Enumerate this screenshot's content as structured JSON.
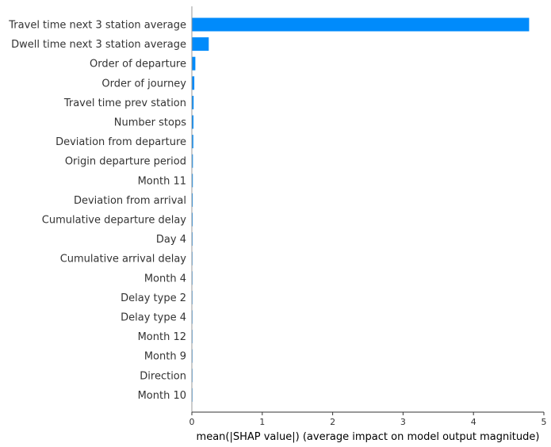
{
  "chart_data": {
    "type": "bar",
    "orientation": "horizontal",
    "categories": [
      "Travel time next 3 station average",
      "Dwell time next 3 station average",
      "Order of departure",
      "Order of journey",
      "Travel time prev station",
      "Number stops",
      "Deviation from departure",
      "Origin departure period",
      "Month 11",
      "Deviation from arrival",
      "Cumulative departure delay",
      "Day 4",
      "Cumulative arrival delay",
      "Month 4",
      "Delay type 2",
      "Delay type 4",
      "Month 12",
      "Month 9",
      "Direction",
      "Month 10"
    ],
    "values": [
      4.79,
      0.24,
      0.05,
      0.035,
      0.025,
      0.022,
      0.02,
      0.015,
      0.013,
      0.012,
      0.011,
      0.01,
      0.009,
      0.008,
      0.007,
      0.006,
      0.005,
      0.003,
      0.002,
      0.0015
    ],
    "xlabel": "mean(|SHAP value|) (average impact on model output magnitude)",
    "ylabel": "",
    "xlim": [
      0,
      5
    ],
    "xticks": [
      "0",
      "1",
      "2",
      "3",
      "4",
      "5"
    ],
    "grid": false,
    "bar_color": "#008bfb"
  }
}
